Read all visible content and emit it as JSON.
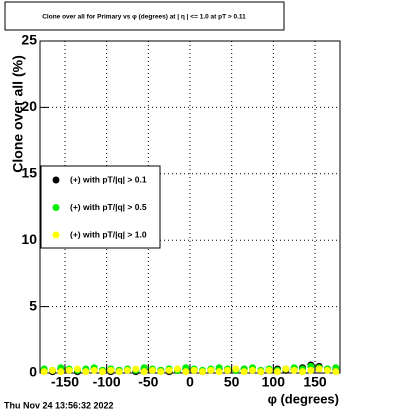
{
  "chart_data": {
    "type": "scatter",
    "title": "Clone  over all for Primary vs φ (degrees) at | η | <= 1.0 at pT > 0.11",
    "x_label": "φ (degrees)",
    "y_label": "Clone  over all (%)",
    "x": [
      -175,
      -165,
      -155,
      -145,
      -135,
      -125,
      -115,
      -105,
      -95,
      -85,
      -75,
      -65,
      -55,
      -45,
      -35,
      -25,
      -15,
      -5,
      5,
      15,
      25,
      35,
      45,
      55,
      65,
      75,
      85,
      95,
      105,
      115,
      125,
      135,
      145,
      155,
      165,
      175
    ],
    "series": [
      {
        "name": "(+) with pT/|q| > 0.1",
        "color": "#000000",
        "values": [
          0.2,
          0.1,
          0.3,
          0.2,
          0.1,
          0.2,
          0.3,
          0.2,
          0.1,
          0.2,
          0.2,
          0.1,
          0.3,
          0.2,
          0.2,
          0.1,
          0.2,
          0.3,
          0.2,
          0.1,
          0.2,
          0.3,
          0.2,
          0.2,
          0.3,
          0.2,
          0.1,
          0.2,
          0.3,
          0.2,
          0.3,
          0.4,
          0.6,
          0.5,
          0.3,
          0.2
        ]
      },
      {
        "name": "(+) with pT/|q| > 0.5",
        "color": "#00ee00",
        "values": [
          0.3,
          0.2,
          0.4,
          0.3,
          0.2,
          0.3,
          0.4,
          0.2,
          0.3,
          0.2,
          0.3,
          0.2,
          0.4,
          0.3,
          0.2,
          0.3,
          0.2,
          0.4,
          0.3,
          0.2,
          0.3,
          0.4,
          0.3,
          0.2,
          0.3,
          0.4,
          0.2,
          0.3,
          0.2,
          0.3,
          0.4,
          0.3,
          0.5,
          0.4,
          0.3,
          0.4
        ]
      },
      {
        "name": "(+) with pT/|q| > 1.0",
        "color": "#ffff00",
        "values": [
          0.1,
          0.2,
          0.1,
          0.2,
          0.3,
          0.1,
          0.2,
          0.1,
          0.2,
          0.1,
          0.2,
          0.3,
          0.1,
          0.2,
          0.1,
          0.2,
          0.3,
          0.1,
          0.2,
          0.1,
          0.2,
          0.1,
          0.2,
          0.3,
          0.1,
          0.2,
          0.1,
          0.2,
          0.1,
          0.3,
          0.2,
          0.1,
          0.2,
          0.3,
          0.2,
          0.1
        ]
      }
    ],
    "xlim": [
      -180,
      180
    ],
    "xticks": [
      -150,
      -100,
      -50,
      0,
      50,
      100,
      150
    ],
    "ylim": [
      0,
      25
    ],
    "yticks": [
      0,
      5,
      10,
      15,
      20,
      25
    ],
    "grid": true
  },
  "timestamp": "Thu Nov 24 13:56:32 2022"
}
